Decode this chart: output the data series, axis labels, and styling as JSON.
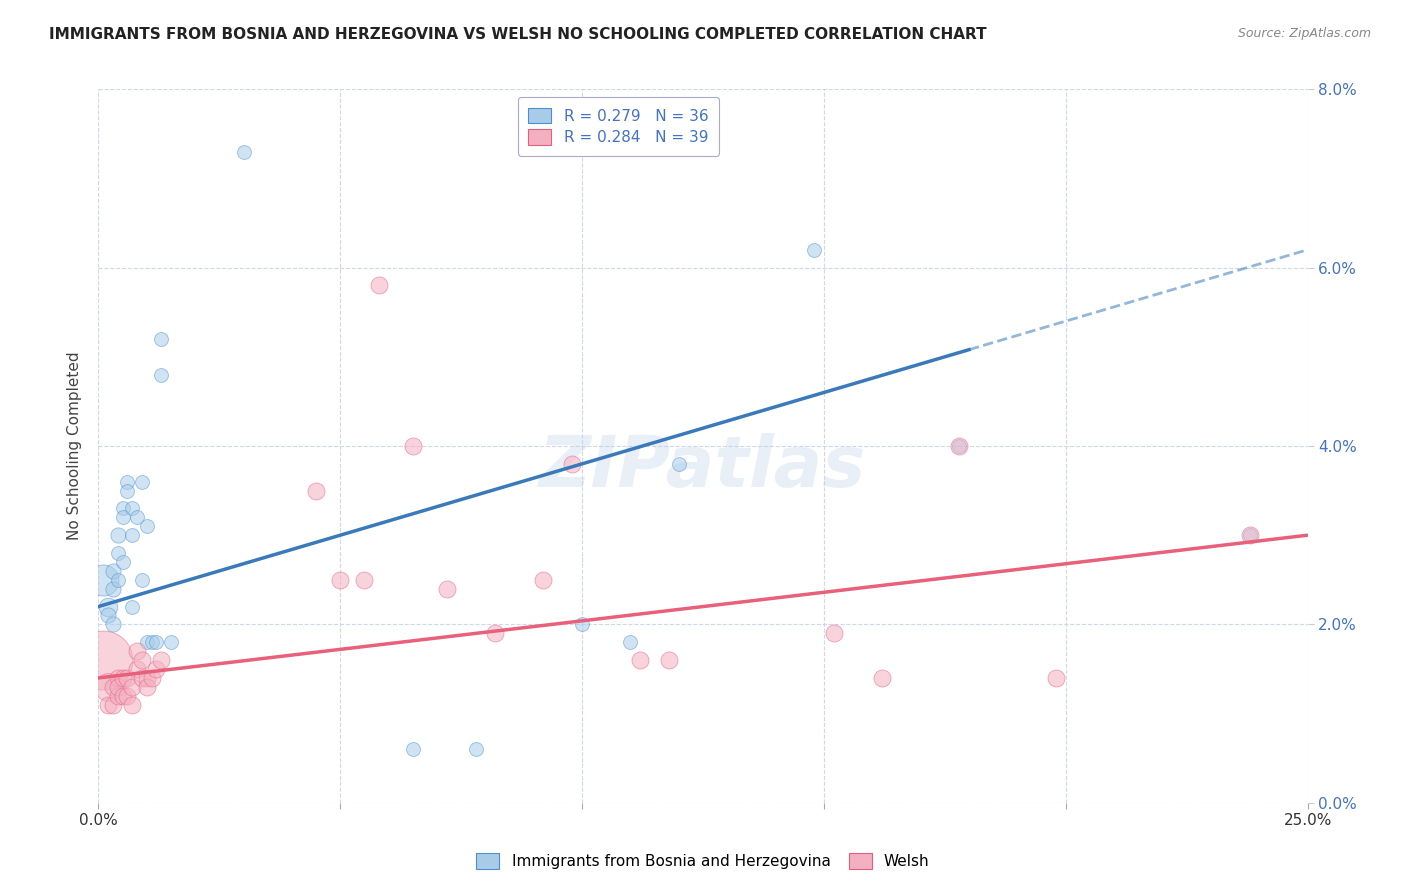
{
  "title": "IMMIGRANTS FROM BOSNIA AND HERZEGOVINA VS WELSH NO SCHOOLING COMPLETED CORRELATION CHART",
  "source": "Source: ZipAtlas.com",
  "ylabel": "No Schooling Completed",
  "xlim": [
    0.0,
    0.25
  ],
  "ylim": [
    0.0,
    0.08
  ],
  "xticks": [
    0.0,
    0.05,
    0.1,
    0.15,
    0.2,
    0.25
  ],
  "yticks": [
    0.0,
    0.02,
    0.04,
    0.06,
    0.08
  ],
  "yticklabels_right": [
    "0.0%",
    "2.0%",
    "4.0%",
    "6.0%",
    "8.0%"
  ],
  "legend1_label": "R = 0.279   N = 36",
  "legend2_label": "R = 0.284   N = 39",
  "legend1_color": "#a8cce8",
  "legend2_color": "#f4b0c0",
  "watermark": "ZIPatlas",
  "blue_color": "#a8cce8",
  "pink_color": "#f4b0c0",
  "blue_line_color": "#3a7aba",
  "pink_line_color": "#e8607a",
  "blue_points": [
    [
      0.001,
      0.025,
      500
    ],
    [
      0.002,
      0.022,
      180
    ],
    [
      0.002,
      0.021,
      120
    ],
    [
      0.003,
      0.02,
      120
    ],
    [
      0.003,
      0.024,
      120
    ],
    [
      0.003,
      0.026,
      120
    ],
    [
      0.004,
      0.03,
      120
    ],
    [
      0.004,
      0.028,
      100
    ],
    [
      0.004,
      0.025,
      100
    ],
    [
      0.005,
      0.033,
      100
    ],
    [
      0.005,
      0.032,
      100
    ],
    [
      0.005,
      0.027,
      100
    ],
    [
      0.006,
      0.036,
      100
    ],
    [
      0.006,
      0.035,
      100
    ],
    [
      0.007,
      0.033,
      100
    ],
    [
      0.007,
      0.03,
      100
    ],
    [
      0.007,
      0.022,
      100
    ],
    [
      0.008,
      0.032,
      100
    ],
    [
      0.009,
      0.036,
      100
    ],
    [
      0.009,
      0.025,
      100
    ],
    [
      0.01,
      0.031,
      100
    ],
    [
      0.01,
      0.018,
      100
    ],
    [
      0.011,
      0.018,
      100
    ],
    [
      0.012,
      0.018,
      100
    ],
    [
      0.013,
      0.052,
      100
    ],
    [
      0.013,
      0.048,
      100
    ],
    [
      0.015,
      0.018,
      100
    ],
    [
      0.03,
      0.073,
      100
    ],
    [
      0.065,
      0.006,
      100
    ],
    [
      0.078,
      0.006,
      100
    ],
    [
      0.1,
      0.02,
      100
    ],
    [
      0.11,
      0.018,
      100
    ],
    [
      0.12,
      0.038,
      100
    ],
    [
      0.148,
      0.062,
      100
    ],
    [
      0.178,
      0.04,
      100
    ],
    [
      0.238,
      0.03,
      100
    ]
  ],
  "pink_points": [
    [
      0.001,
      0.016,
      1800
    ],
    [
      0.002,
      0.013,
      400
    ],
    [
      0.002,
      0.011,
      150
    ],
    [
      0.003,
      0.013,
      150
    ],
    [
      0.003,
      0.011,
      150
    ],
    [
      0.004,
      0.012,
      150
    ],
    [
      0.004,
      0.014,
      150
    ],
    [
      0.004,
      0.013,
      150
    ],
    [
      0.005,
      0.012,
      150
    ],
    [
      0.005,
      0.014,
      150
    ],
    [
      0.006,
      0.012,
      150
    ],
    [
      0.006,
      0.014,
      150
    ],
    [
      0.007,
      0.013,
      150
    ],
    [
      0.007,
      0.011,
      150
    ],
    [
      0.008,
      0.017,
      150
    ],
    [
      0.008,
      0.015,
      150
    ],
    [
      0.009,
      0.016,
      150
    ],
    [
      0.009,
      0.014,
      150
    ],
    [
      0.01,
      0.014,
      150
    ],
    [
      0.01,
      0.013,
      150
    ],
    [
      0.011,
      0.014,
      150
    ],
    [
      0.012,
      0.015,
      150
    ],
    [
      0.013,
      0.016,
      150
    ],
    [
      0.045,
      0.035,
      150
    ],
    [
      0.05,
      0.025,
      150
    ],
    [
      0.055,
      0.025,
      150
    ],
    [
      0.058,
      0.058,
      150
    ],
    [
      0.065,
      0.04,
      150
    ],
    [
      0.072,
      0.024,
      150
    ],
    [
      0.082,
      0.019,
      150
    ],
    [
      0.092,
      0.025,
      150
    ],
    [
      0.098,
      0.038,
      150
    ],
    [
      0.112,
      0.016,
      150
    ],
    [
      0.118,
      0.016,
      150
    ],
    [
      0.152,
      0.019,
      150
    ],
    [
      0.162,
      0.014,
      150
    ],
    [
      0.178,
      0.04,
      150
    ],
    [
      0.198,
      0.014,
      150
    ],
    [
      0.238,
      0.03,
      150
    ]
  ],
  "background_color": "#ffffff",
  "grid_color": "#c8d4e8",
  "title_fontsize": 11,
  "axis_label_fontsize": 11,
  "tick_fontsize": 11,
  "right_tick_color": "#4472c4",
  "watermark_color": "#b8cce4",
  "watermark_fontsize": 52,
  "watermark_alpha": 0.3
}
